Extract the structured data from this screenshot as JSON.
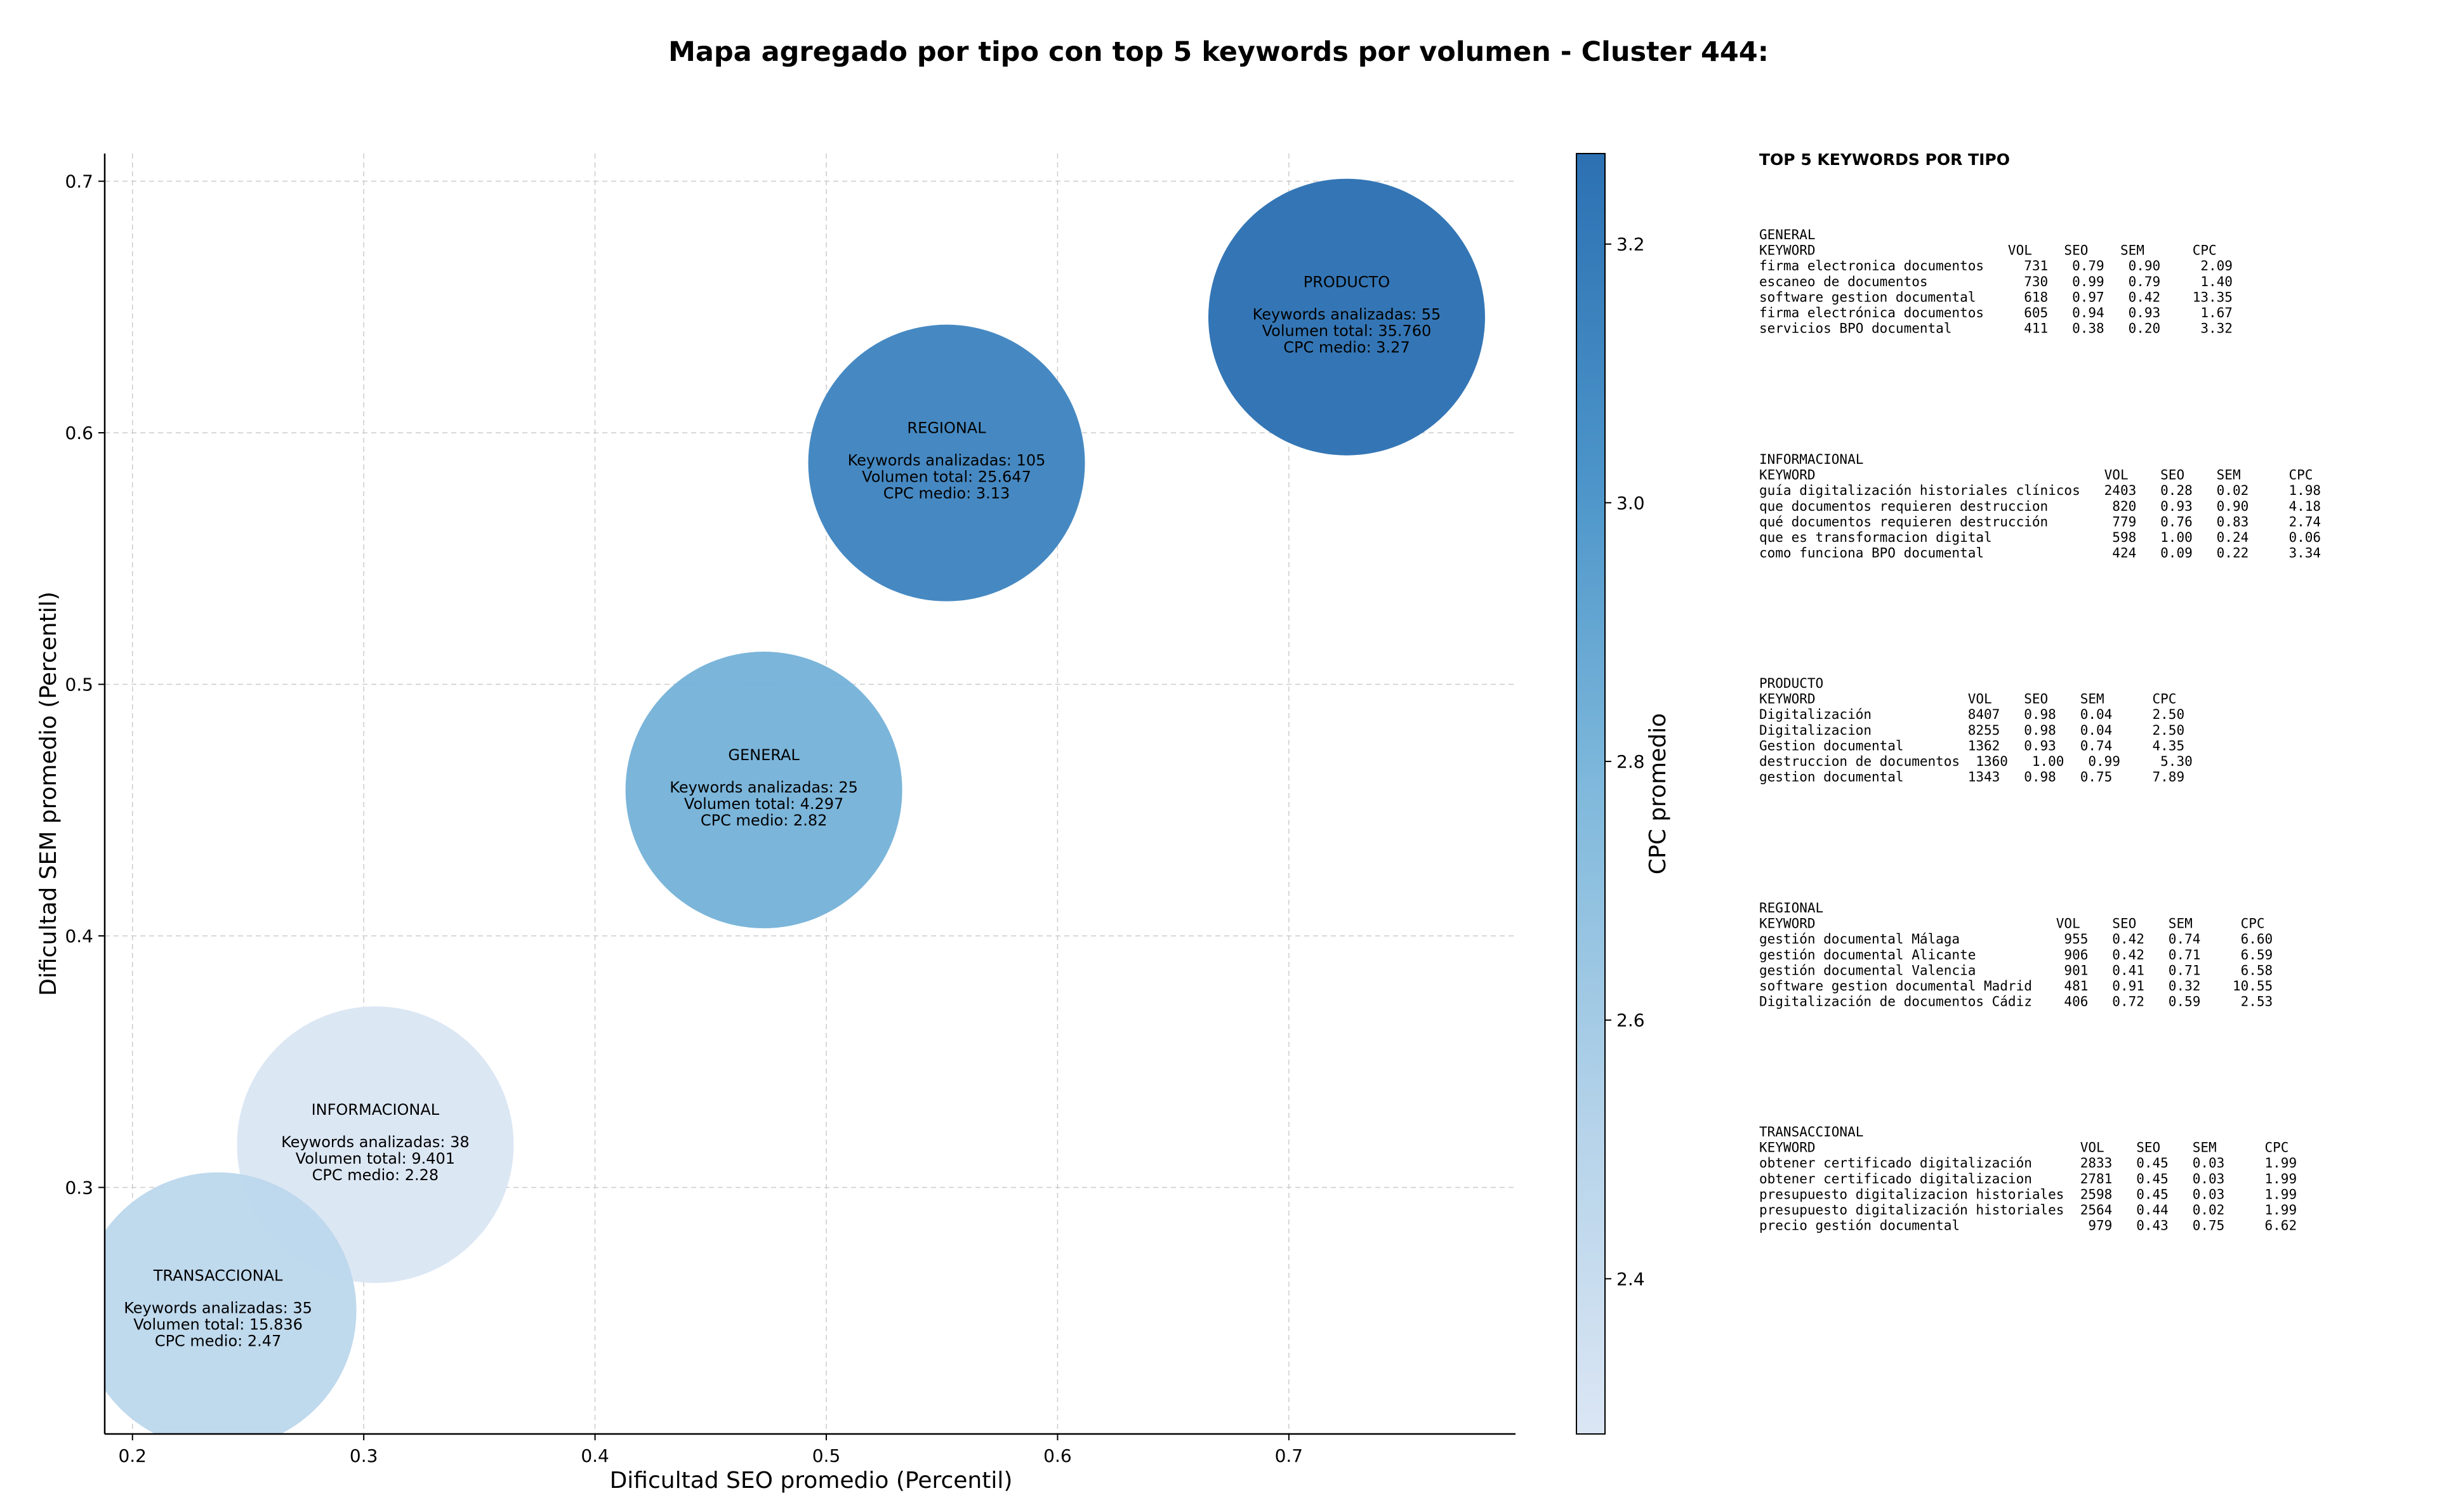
{
  "chart_data": {
    "type": "scatter",
    "title": "Mapa agregado por tipo con top 5 keywords por volumen - Cluster 444:",
    "xlabel": "Dificultad SEO promedio (Percentil)",
    "ylabel": "Dificultad SEM promedio (Percentil)",
    "xlim": [
      0.188,
      0.798
    ],
    "ylim": [
      0.202,
      0.711
    ],
    "xticks": [
      "0.2",
      "0.3",
      "0.4",
      "0.5",
      "0.6",
      "0.7"
    ],
    "yticks": [
      "0.3",
      "0.4",
      "0.5",
      "0.6",
      "0.7"
    ],
    "grid": true,
    "colorbar": {
      "label": "CPC promedio",
      "range": [
        2.28,
        3.27
      ],
      "ticks": [
        "2.4",
        "2.6",
        "2.8",
        "3.0",
        "3.2"
      ]
    },
    "points": [
      {
        "name": "PRODUCTO",
        "x": 0.725,
        "y": 0.646,
        "cpc": 3.27,
        "kw_label": "Keywords analizadas: 55",
        "vol_label": "Volumen total: 35.760",
        "cpc_label": "CPC medio: 3.27"
      },
      {
        "name": "REGIONAL",
        "x": 0.552,
        "y": 0.588,
        "cpc": 3.13,
        "kw_label": "Keywords analizadas: 105",
        "vol_label": "Volumen total: 25.647",
        "cpc_label": "CPC medio: 3.13"
      },
      {
        "name": "GENERAL",
        "x": 0.473,
        "y": 0.458,
        "cpc": 2.82,
        "kw_label": "Keywords analizadas: 25",
        "vol_label": "Volumen total: 4.297",
        "cpc_label": "CPC medio: 2.82"
      },
      {
        "name": "INFORMACIONAL",
        "x": 0.305,
        "y": 0.317,
        "cpc": 2.28,
        "kw_label": "Keywords analizadas: 38",
        "vol_label": "Volumen total: 9.401",
        "cpc_label": "CPC medio: 2.28"
      },
      {
        "name": "TRANSACCIONAL",
        "x": 0.237,
        "y": 0.251,
        "cpc": 2.47,
        "kw_label": "Keywords analizadas: 35",
        "vol_label": "Volumen total: 15.836",
        "cpc_label": "CPC medio: 2.47"
      }
    ]
  },
  "panel": {
    "heading": "TOP 5 KEYWORDS POR TIPO",
    "groups": [
      {
        "name": "GENERAL",
        "header": "KEYWORD                        VOL    SEO    SEM      CPC",
        "rows": [
          "firma electronica documentos     731   0.79   0.90     2.09",
          "escaneo de documentos            730   0.99   0.79     1.40",
          "software gestion documental      618   0.97   0.42    13.35",
          "firma electrónica documentos     605   0.94   0.93     1.67",
          "servicios BPO documental         411   0.38   0.20     3.32"
        ]
      },
      {
        "name": "INFORMACIONAL",
        "header": "KEYWORD                                    VOL    SEO    SEM      CPC",
        "rows": [
          "guía digitalización historiales clínicos   2403   0.28   0.02     1.98",
          "que documentos requieren destruccion        820   0.93   0.90     4.18",
          "qué documentos requieren destrucción        779   0.76   0.83     2.74",
          "que es transformacion digital               598   1.00   0.24     0.06",
          "como funciona BPO documental                424   0.09   0.22     3.34"
        ]
      },
      {
        "name": "PRODUCTO",
        "header": "KEYWORD                   VOL    SEO    SEM      CPC",
        "rows": [
          "Digitalización            8407   0.98   0.04     2.50",
          "Digitalizacion            8255   0.98   0.04     2.50",
          "Gestion documental        1362   0.93   0.74     4.35",
          "destruccion de documentos  1360   1.00   0.99     5.30",
          "gestion documental        1343   0.98   0.75     7.89"
        ]
      },
      {
        "name": "REGIONAL",
        "header": "KEYWORD                              VOL    SEO    SEM      CPC",
        "rows": [
          "gestión documental Málaga             955   0.42   0.74     6.60",
          "gestión documental Alicante           906   0.42   0.71     6.59",
          "gestión documental Valencia           901   0.41   0.71     6.58",
          "software gestion documental Madrid    481   0.91   0.32    10.55",
          "Digitalización de documentos Cádiz    406   0.72   0.59     2.53"
        ]
      },
      {
        "name": "TRANSACCIONAL",
        "header": "KEYWORD                                 VOL    SEO    SEM      CPC",
        "rows": [
          "obtener certificado digitalización      2833   0.45   0.03     1.99",
          "obtener certificado digitalizacion      2781   0.45   0.03     1.99",
          "presupuesto digitalizacion historiales  2598   0.45   0.03     1.99",
          "presupuesto digitalización historiales  2564   0.44   0.02     1.99",
          "precio gestión documental                979   0.43   0.75     6.62"
        ]
      }
    ]
  }
}
